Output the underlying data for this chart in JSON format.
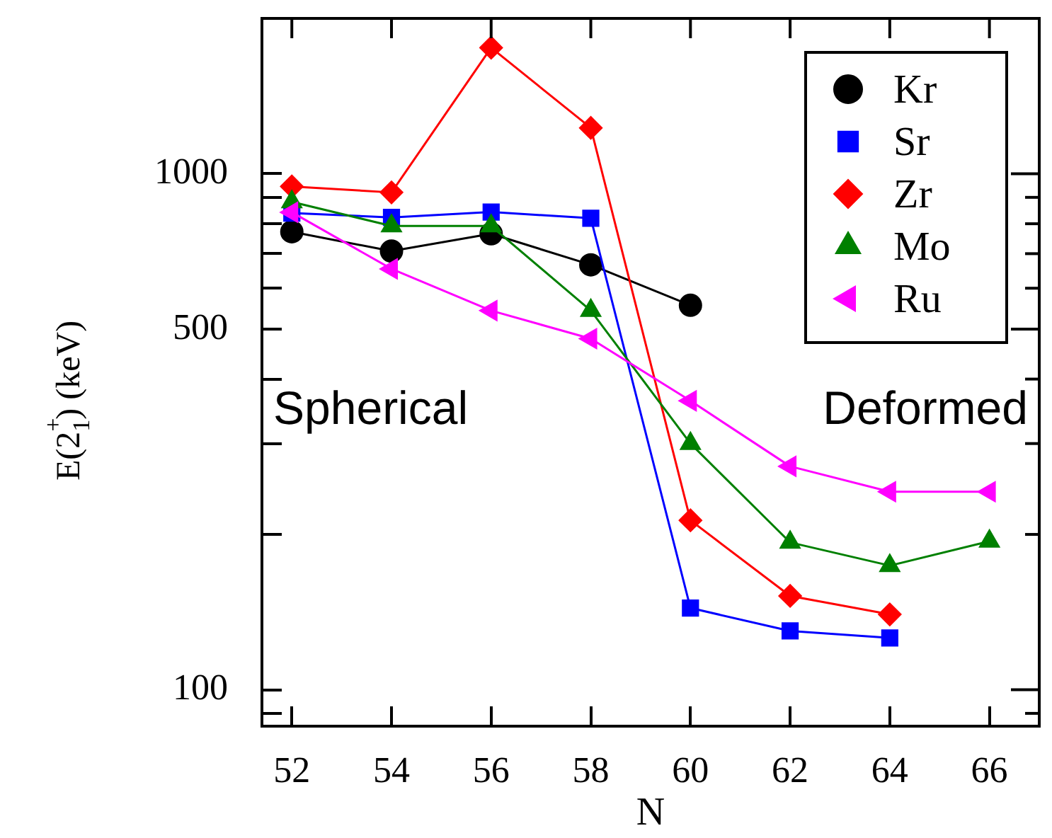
{
  "chart_data": {
    "type": "line",
    "xlabel": "N",
    "ylabel": "E(2$^{+}$$_{1}$) (keV)",
    "log": "y",
    "grid": false,
    "legend": "top right",
    "line_style": "solid",
    "xlim": [
      51.4,
      67
    ],
    "xticks": [
      52,
      54,
      56,
      58,
      60,
      62,
      64,
      66
    ],
    "ylim": [
      85,
      2000
    ],
    "yticks": [
      {
        "value": 90,
        "label": null
      },
      100,
      {
        "value": 200,
        "label": null
      },
      {
        "value": 300,
        "label": null
      },
      {
        "value": 400,
        "label": null
      },
      500,
      {
        "value": 600,
        "label": null
      },
      {
        "value": 700,
        "label": null
      },
      {
        "value": 800,
        "label": null
      },
      {
        "value": 900,
        "label": null
      },
      1000
    ],
    "annotations": [
      "Spherical",
      "Deformed"
    ],
    "series": [
      {
        "name": "Kr",
        "color": "#000000",
        "marker": "circle",
        "x": [
          52,
          54,
          56,
          58,
          60
        ],
        "values": [
          772,
          708,
          765,
          666,
          556
        ]
      },
      {
        "name": "Sr",
        "color": "#0000ff",
        "marker": "square",
        "x": [
          52,
          54,
          56,
          58,
          60,
          62,
          64
        ],
        "values": [
          839,
          823,
          843,
          820,
          144,
          130,
          126
        ]
      },
      {
        "name": "Zr",
        "color": "#ff0000",
        "marker": "diamond",
        "x": [
          52,
          54,
          56,
          58,
          60,
          62,
          64
        ],
        "values": [
          945,
          920,
          1755,
          1227,
          213,
          152,
          140
        ]
      },
      {
        "name": "Mo",
        "color": "#008000",
        "marker": "triangle",
        "x": [
          52,
          54,
          56,
          58,
          60,
          62,
          64,
          66
        ],
        "values": [
          882,
          792,
          792,
          543,
          300,
          193,
          174,
          194
        ]
      },
      {
        "name": "Ru",
        "color": "#ff00ff",
        "marker": "triangle-left",
        "x": [
          52,
          54,
          56,
          58,
          60,
          62,
          64,
          66
        ],
        "values": [
          842,
          654,
          543,
          479,
          363,
          271,
          242,
          242
        ]
      }
    ]
  }
}
